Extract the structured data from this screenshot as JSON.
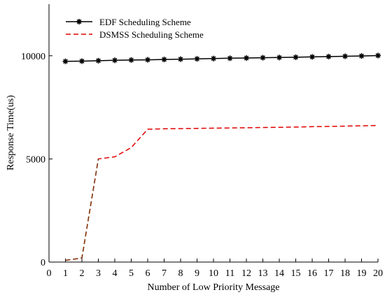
{
  "chart_data": {
    "type": "line",
    "title": "",
    "xlabel": "Number of Low Priority Message",
    "ylabel": "Response Time(us)",
    "xlim": [
      0,
      20
    ],
    "ylim": [
      0,
      12500
    ],
    "xticks": [
      "0",
      "1",
      "2",
      "3",
      "4",
      "5",
      "6",
      "7",
      "8",
      "9",
      "10",
      "11",
      "12",
      "13",
      "14",
      "15",
      "16",
      "17",
      "18",
      "19",
      "20"
    ],
    "yticks": [
      {
        "value": 0,
        "label": "0"
      },
      {
        "value": 5000,
        "label": "5000"
      },
      {
        "value": 10000,
        "label": "10000"
      }
    ],
    "grid": false,
    "legend_position": "top-left",
    "series": [
      {
        "name": "EDF Scheduling Scheme",
        "color": "#000000",
        "style": "solid",
        "marker": "asterisk",
        "x": [
          1,
          2,
          3,
          4,
          5,
          6,
          7,
          8,
          9,
          10,
          11,
          12,
          13,
          14,
          15,
          16,
          17,
          18,
          19,
          20
        ],
        "values": [
          9730,
          9740,
          9760,
          9780,
          9795,
          9805,
          9820,
          9835,
          9850,
          9865,
          9880,
          9890,
          9905,
          9915,
          9930,
          9945,
          9960,
          9975,
          9990,
          10010
        ]
      },
      {
        "name": "DSMSS Scheduling Scheme",
        "color": "#e00000",
        "style": "dashed",
        "marker": "none",
        "x": [
          1,
          2,
          3,
          4,
          5,
          6,
          7,
          8,
          9,
          10,
          11,
          12,
          13,
          14,
          15,
          16,
          17,
          18,
          19,
          20
        ],
        "values": [
          80,
          200,
          5000,
          5100,
          5550,
          6440,
          6460,
          6470,
          6480,
          6490,
          6500,
          6510,
          6520,
          6530,
          6545,
          6560,
          6575,
          6590,
          6605,
          6620
        ]
      }
    ]
  }
}
